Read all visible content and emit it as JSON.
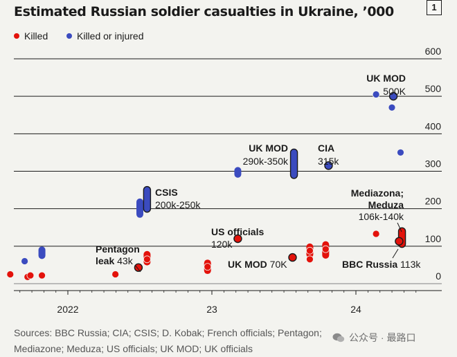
{
  "title": "Estimated Russian soldier casualties in Ukraine, ’000",
  "figure_number": "1",
  "legend": [
    {
      "label": "Killed",
      "color": "#e3120b"
    },
    {
      "label": "Killed or injured",
      "color": "#3b4bbf"
    }
  ],
  "source": "Sources: BBC Russia; CIA; CSIS; D. Kobak; French officials; Pentagon; Mediazone; Meduza; US officials; UK MOD; UK officials",
  "watermark": "公众号 · 最路口",
  "chart_data": {
    "type": "scatter",
    "title": "Estimated Russian soldier casualties in Ukraine, ’000",
    "ylim": [
      0,
      600
    ],
    "y_ticks": [
      0,
      100,
      200,
      300,
      400,
      500,
      600
    ],
    "y_axis_side": "right",
    "xlim": [
      2022.1,
      2024.58
    ],
    "x_ticks": [
      {
        "value": 2022.0,
        "label": "2022"
      },
      {
        "value": 2023.0,
        "label": "23"
      },
      {
        "value": 2024.0,
        "label": "24"
      }
    ],
    "grid": "horizontal",
    "legend_position": "top-left",
    "series": [
      {
        "name": "Killed",
        "color": "#e3120b",
        "points": [
          {
            "x": 2021.6,
            "y": 25
          },
          {
            "x": 2021.72,
            "y": 18
          },
          {
            "x": 2021.74,
            "y": 22
          },
          {
            "x": 2021.82,
            "y": 22
          },
          {
            "x": 2022.33,
            "y": 25
          },
          {
            "x": 2022.49,
            "y": 43,
            "outlined": true
          },
          {
            "x": 2022.55,
            "y": 65
          },
          {
            "x": 2022.97,
            "y": 45
          },
          {
            "x": 2023.18,
            "y": 120,
            "outlined": true
          },
          {
            "x": 2023.56,
            "y": 70,
            "outlined": true
          },
          {
            "x": 2023.68,
            "y": 88
          },
          {
            "x": 2023.68,
            "y": 65
          },
          {
            "x": 2023.79,
            "y": 92
          },
          {
            "x": 2024.14,
            "y": 133
          },
          {
            "x": 2024.3,
            "y": 113,
            "outlined": true
          }
        ],
        "ranges": [
          {
            "x": 2022.55,
            "low": 58,
            "high": 78
          },
          {
            "x": 2022.97,
            "low": 35,
            "high": 55
          },
          {
            "x": 2023.68,
            "low": 78,
            "high": 98
          },
          {
            "x": 2023.79,
            "low": 76,
            "high": 104
          },
          {
            "x": 2024.32,
            "low": 106,
            "high": 140,
            "outlined": true
          }
        ]
      },
      {
        "name": "Killed or injured",
        "color": "#3b4bbf",
        "points": [
          {
            "x": 2021.7,
            "y": 60
          },
          {
            "x": 2024.14,
            "y": 505
          },
          {
            "x": 2024.25,
            "y": 470
          },
          {
            "x": 2024.26,
            "y": 500,
            "outlined": true
          },
          {
            "x": 2024.31,
            "y": 350
          },
          {
            "x": 2023.81,
            "y": 315,
            "outlined": true
          }
        ],
        "ranges": [
          {
            "x": 2021.82,
            "low": 75,
            "high": 90
          },
          {
            "x": 2022.5,
            "low": 185,
            "high": 218
          },
          {
            "x": 2022.55,
            "low": 200,
            "high": 250,
            "outlined": true
          },
          {
            "x": 2023.18,
            "low": 292,
            "high": 302
          },
          {
            "x": 2023.57,
            "low": 290,
            "high": 350,
            "outlined": true
          }
        ]
      }
    ],
    "annotations": [
      {
        "id": "pentagon-leak",
        "lines": [
          {
            "bold": "Pentagon",
            "regular": ""
          },
          {
            "bold": "leak",
            "regular": " 43k"
          }
        ]
      },
      {
        "id": "csis",
        "lines": [
          {
            "bold": "CSIS",
            "regular": ""
          },
          {
            "bold": "",
            "regular": "200k-250k"
          }
        ]
      },
      {
        "id": "us-officials",
        "lines": [
          {
            "bold": "US officials",
            "regular": ""
          },
          {
            "bold": "",
            "regular": "120k"
          }
        ]
      },
      {
        "id": "uk-mod-2022",
        "lines": [
          {
            "bold": "UK MOD",
            "regular": ""
          },
          {
            "bold": "",
            "regular": "290k-350k"
          }
        ]
      },
      {
        "id": "cia",
        "lines": [
          {
            "bold": "CIA",
            "regular": ""
          },
          {
            "bold": "",
            "regular": "315k"
          }
        ]
      },
      {
        "id": "uk-mod-70k",
        "lines": [
          {
            "bold": "UK MOD",
            "regular": " 70K"
          }
        ]
      },
      {
        "id": "uk-mod-500k",
        "lines": [
          {
            "bold": "UK MOD",
            "regular": ""
          },
          {
            "bold": "",
            "regular": "500K"
          }
        ]
      },
      {
        "id": "mediazona-meduza",
        "lines": [
          {
            "bold": "Mediazona;",
            "regular": ""
          },
          {
            "bold": "Meduza",
            "regular": ""
          },
          {
            "bold": "",
            "regular": "106k-140k"
          }
        ]
      },
      {
        "id": "bbc-russia",
        "lines": [
          {
            "bold": "BBC Russia",
            "regular": " 113k"
          }
        ]
      }
    ]
  }
}
